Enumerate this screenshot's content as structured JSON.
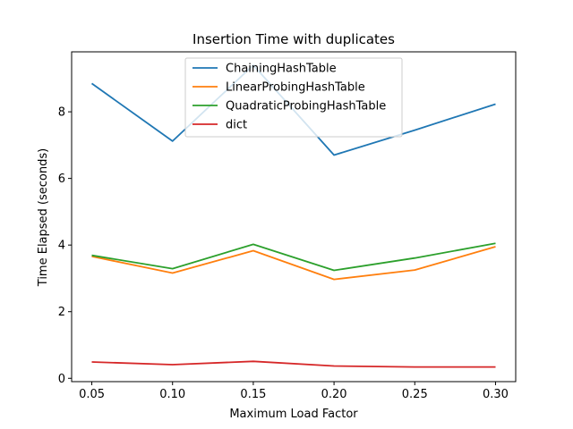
{
  "chart_data": {
    "type": "line",
    "title": "Insertion Time with duplicates",
    "xlabel": "Maximum Load Factor",
    "ylabel": "Time Elapsed (seconds)",
    "x": [
      0.05,
      0.1,
      0.15,
      0.2,
      0.25,
      0.3
    ],
    "x_tick_labels": [
      "0.05",
      "0.10",
      "0.15",
      "0.20",
      "0.25",
      "0.30"
    ],
    "y_ticks": [
      0,
      2,
      4,
      6,
      8
    ],
    "y_tick_labels": [
      "0",
      "2",
      "4",
      "6",
      "8"
    ],
    "xlim": [
      0.0375,
      0.3125
    ],
    "ylim": [
      -0.1,
      9.8
    ],
    "grid": false,
    "legend_position": "top-center",
    "series": [
      {
        "name": "ChainingHashTable",
        "color": "#1f77b4",
        "values": [
          8.85,
          7.12,
          9.4,
          6.7,
          7.45,
          8.23
        ]
      },
      {
        "name": "LinearProbingHashTable",
        "color": "#ff7f0e",
        "values": [
          3.66,
          3.16,
          3.83,
          2.97,
          3.25,
          3.95
        ]
      },
      {
        "name": "QuadraticProbingHashTable",
        "color": "#2ca02c",
        "values": [
          3.69,
          3.29,
          4.02,
          3.24,
          3.61,
          4.05
        ]
      },
      {
        "name": "dict",
        "color": "#d62728",
        "values": [
          0.49,
          0.41,
          0.51,
          0.37,
          0.34,
          0.34
        ]
      }
    ]
  }
}
